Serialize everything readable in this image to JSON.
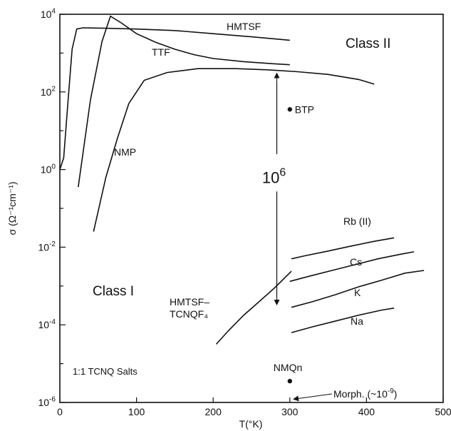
{
  "chart_data": {
    "type": "line",
    "xlabel": "T(°K)",
    "ylabel": "σ (Ω⁻¹cm⁻¹)",
    "xlim": [
      0,
      500
    ],
    "ylim": [
      -6,
      4
    ],
    "y_scale": "log",
    "x_ticks": [
      "0",
      "100",
      "200",
      "300",
      "400",
      "500"
    ],
    "y_ticks": [
      {
        "base": "10",
        "exp": "4"
      },
      {
        "base": "10",
        "exp": "2"
      },
      {
        "base": "10",
        "exp": "0"
      },
      {
        "base": "10",
        "exp": "-2"
      },
      {
        "base": "10",
        "exp": "-4"
      },
      {
        "base": "10",
        "exp": "-6"
      }
    ],
    "grid": false,
    "series": [
      {
        "name": "HMTSF",
        "points": [
          [
            0,
            0.0
          ],
          [
            5,
            0.3
          ],
          [
            10,
            1.6
          ],
          [
            16,
            3.1
          ],
          [
            22,
            3.62
          ],
          [
            30,
            3.65
          ],
          [
            60,
            3.64
          ],
          [
            100,
            3.62
          ],
          [
            150,
            3.58
          ],
          [
            200,
            3.5
          ],
          [
            250,
            3.42
          ],
          [
            300,
            3.33
          ]
        ]
      },
      {
        "name": "TTF",
        "points": [
          [
            24,
            -0.45
          ],
          [
            40,
            1.8
          ],
          [
            55,
            3.3
          ],
          [
            66,
            3.95
          ],
          [
            80,
            3.78
          ],
          [
            100,
            3.5
          ],
          [
            125,
            3.28
          ],
          [
            150,
            3.1
          ],
          [
            175,
            2.96
          ],
          [
            200,
            2.86
          ],
          [
            240,
            2.78
          ],
          [
            275,
            2.73
          ],
          [
            300,
            2.7
          ]
        ]
      },
      {
        "name": "NMP",
        "points": [
          [
            44,
            -1.6
          ],
          [
            60,
            -0.2
          ],
          [
            75,
            0.8
          ],
          [
            90,
            1.7
          ],
          [
            110,
            2.3
          ],
          [
            140,
            2.5
          ],
          [
            180,
            2.6
          ],
          [
            230,
            2.6
          ],
          [
            270,
            2.57
          ],
          [
            310,
            2.52
          ],
          [
            350,
            2.45
          ],
          [
            390,
            2.32
          ],
          [
            410,
            2.2
          ]
        ]
      },
      {
        "name": "HMTSF–TCNQF₄",
        "points": [
          [
            204,
            -4.5
          ],
          [
            220,
            -4.15
          ],
          [
            240,
            -3.75
          ],
          [
            260,
            -3.4
          ],
          [
            280,
            -3.05
          ],
          [
            302,
            -2.62
          ]
        ]
      },
      {
        "name": "Rb (II)",
        "points": [
          [
            302,
            -2.3
          ],
          [
            320,
            -2.22
          ],
          [
            350,
            -2.1
          ],
          [
            380,
            -1.97
          ],
          [
            410,
            -1.85
          ],
          [
            436,
            -1.76
          ]
        ]
      },
      {
        "name": "Cs",
        "points": [
          [
            300,
            -2.88
          ],
          [
            325,
            -2.75
          ],
          [
            355,
            -2.6
          ],
          [
            385,
            -2.45
          ],
          [
            415,
            -2.3
          ],
          [
            445,
            -2.18
          ],
          [
            462,
            -2.12
          ]
        ]
      },
      {
        "name": "K",
        "points": [
          [
            302,
            -3.55
          ],
          [
            330,
            -3.4
          ],
          [
            360,
            -3.22
          ],
          [
            390,
            -3.02
          ],
          [
            420,
            -2.85
          ],
          [
            450,
            -2.67
          ],
          [
            475,
            -2.6
          ]
        ]
      },
      {
        "name": "Na",
        "points": [
          [
            302,
            -4.2
          ],
          [
            330,
            -4.05
          ],
          [
            360,
            -3.9
          ],
          [
            390,
            -3.75
          ],
          [
            420,
            -3.62
          ],
          [
            436,
            -3.57
          ]
        ]
      }
    ],
    "points": [
      {
        "name": "BTP",
        "x": 300,
        "y": 1.55
      },
      {
        "name": "NMQn",
        "x": 300,
        "y": -5.45
      }
    ],
    "annotations": {
      "arrow_label": {
        "base": "10",
        "exp": "6"
      },
      "arrow_x": 283,
      "arrow_from": 2.5,
      "arrow_to": -3.5,
      "class_ii": "Class II",
      "class_i": "Class I",
      "salts": "1:1 TCNQ Salts",
      "morph": "Morph. (~10",
      "morph_exp": "-9",
      "morph_close": ")",
      "morph_target": {
        "x": 303,
        "y": -5.93
      }
    }
  }
}
